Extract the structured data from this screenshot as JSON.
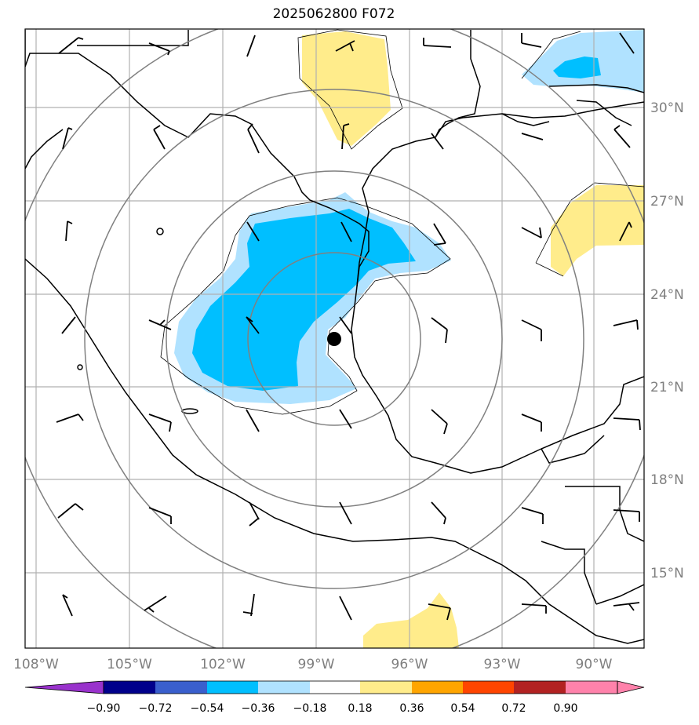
{
  "title": "2025062800 F072",
  "map": {
    "lon_labels": [
      "108°W",
      "105°W",
      "102°W",
      "99°W",
      "96°W",
      "93°W",
      "90°W"
    ],
    "lat_labels": [
      "30°N",
      "27°N",
      "24°N",
      "21°N",
      "18°N",
      "15°N"
    ]
  },
  "colorbar": {
    "tick_labels": [
      "−0.90",
      "−0.72",
      "−0.54",
      "−0.36",
      "−0.18",
      "0.18",
      "0.36",
      "0.54",
      "0.72",
      "0.90"
    ],
    "colors": [
      "#9932cc",
      "#00008b",
      "#3a5fcd",
      "#00bfff",
      "#b0e2ff",
      "#ffffff",
      "#ffec8b",
      "#ffa500",
      "#ff4500",
      "#b22222",
      "#ff82ab"
    ]
  },
  "colors": {
    "light_blue": "#b0e2ff",
    "deep_sky_blue": "#00bfff",
    "light_yellow": "#ffec8b",
    "grid": "#b0b0b0",
    "range_rings": "#808080",
    "coast": "#000000"
  },
  "icons": [
    "storm-center-marker",
    "wind-barb-icon"
  ]
}
